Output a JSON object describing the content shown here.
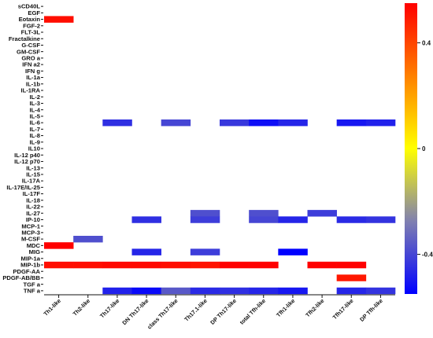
{
  "chart_data": {
    "type": "heatmap",
    "title": "",
    "xlabel": "",
    "ylabel": "",
    "columns": [
      "Th1-like",
      "Th2-like",
      "Th17-like",
      "DN Th17-like",
      "class Th17-like",
      "Th17.1-like",
      "DP Th17-like",
      "total Tfh-like",
      "Tfh1-like",
      "Tfh2-like",
      "Tfh17-like",
      "DP Tfh-like"
    ],
    "rows": [
      "sCD40L",
      "EGF",
      "Eotaxin",
      "FGF-2",
      "FLT-3L",
      "Fractalkine",
      "G-CSF",
      "GM-CSF",
      "GRO a",
      "IFN a2",
      "IFN g",
      "IL-1a",
      "IL-1b",
      "IL-1RA",
      "IL-2",
      "IL-3",
      "IL-4",
      "IL-5",
      "IL-6",
      "IL-7",
      "IL-8",
      "IL-9",
      "IL10",
      "IL-12 p40",
      "IL-12 p70",
      "IL-13",
      "IL-15",
      "IL-17A",
      "IL-17E/IL-25",
      "IL-17F",
      "IL-18",
      "IL-22",
      "IL-27",
      "IP-10",
      "MCP-1",
      "MCP-3",
      "M-CSF",
      "MDC",
      "MIG",
      "MIP-1a",
      "MIP-1b",
      "PDGF-AA",
      "PDGF-AB/BB",
      "TGF a",
      "TNF a"
    ],
    "values": [
      [
        null,
        null,
        null,
        null,
        null,
        null,
        null,
        null,
        null,
        null,
        null,
        null
      ],
      [
        null,
        null,
        null,
        null,
        null,
        null,
        null,
        null,
        null,
        null,
        null,
        null
      ],
      [
        0.52,
        null,
        null,
        null,
        null,
        null,
        null,
        null,
        null,
        null,
        null,
        null
      ],
      [
        null,
        null,
        null,
        null,
        null,
        null,
        null,
        null,
        null,
        null,
        null,
        null
      ],
      [
        null,
        null,
        null,
        null,
        null,
        null,
        null,
        null,
        null,
        null,
        null,
        null
      ],
      [
        null,
        null,
        null,
        null,
        null,
        null,
        null,
        null,
        null,
        null,
        null,
        null
      ],
      [
        null,
        null,
        null,
        null,
        null,
        null,
        null,
        null,
        null,
        null,
        null,
        null
      ],
      [
        null,
        null,
        null,
        null,
        null,
        null,
        null,
        null,
        null,
        null,
        null,
        null
      ],
      [
        null,
        null,
        null,
        null,
        null,
        null,
        null,
        null,
        null,
        null,
        null,
        null
      ],
      [
        null,
        null,
        null,
        null,
        null,
        null,
        null,
        null,
        null,
        null,
        null,
        null
      ],
      [
        null,
        null,
        null,
        null,
        null,
        null,
        null,
        null,
        null,
        null,
        null,
        null
      ],
      [
        null,
        null,
        null,
        null,
        null,
        null,
        null,
        null,
        null,
        null,
        null,
        null
      ],
      [
        null,
        null,
        null,
        null,
        null,
        null,
        null,
        null,
        null,
        null,
        null,
        null
      ],
      [
        null,
        null,
        null,
        null,
        null,
        null,
        null,
        null,
        null,
        null,
        null,
        null
      ],
      [
        null,
        null,
        null,
        null,
        null,
        null,
        null,
        null,
        null,
        null,
        null,
        null
      ],
      [
        null,
        null,
        null,
        null,
        null,
        null,
        null,
        null,
        null,
        null,
        null,
        null
      ],
      [
        null,
        null,
        null,
        null,
        null,
        null,
        null,
        null,
        null,
        null,
        null,
        null
      ],
      [
        null,
        null,
        null,
        null,
        null,
        null,
        null,
        null,
        null,
        null,
        null,
        null
      ],
      [
        null,
        null,
        -0.45,
        null,
        -0.4,
        null,
        -0.43,
        -0.52,
        -0.47,
        null,
        -0.5,
        -0.48
      ],
      [
        null,
        null,
        null,
        null,
        null,
        null,
        null,
        null,
        null,
        null,
        null,
        null
      ],
      [
        null,
        null,
        null,
        null,
        null,
        null,
        null,
        null,
        null,
        null,
        null,
        null
      ],
      [
        null,
        null,
        null,
        null,
        null,
        null,
        null,
        null,
        null,
        null,
        null,
        null
      ],
      [
        null,
        null,
        null,
        null,
        null,
        null,
        null,
        null,
        null,
        null,
        null,
        null
      ],
      [
        null,
        null,
        null,
        null,
        null,
        null,
        null,
        null,
        null,
        null,
        null,
        null
      ],
      [
        null,
        null,
        null,
        null,
        null,
        null,
        null,
        null,
        null,
        null,
        null,
        null
      ],
      [
        null,
        null,
        null,
        null,
        null,
        null,
        null,
        null,
        null,
        null,
        null,
        null
      ],
      [
        null,
        null,
        null,
        null,
        null,
        null,
        null,
        null,
        null,
        null,
        null,
        null
      ],
      [
        null,
        null,
        null,
        null,
        null,
        null,
        null,
        null,
        null,
        null,
        null,
        null
      ],
      [
        null,
        null,
        null,
        null,
        null,
        null,
        null,
        null,
        null,
        null,
        null,
        null
      ],
      [
        null,
        null,
        null,
        null,
        null,
        null,
        null,
        null,
        null,
        null,
        null,
        null
      ],
      [
        null,
        null,
        null,
        null,
        null,
        null,
        null,
        null,
        null,
        null,
        null,
        null
      ],
      [
        null,
        null,
        null,
        null,
        null,
        null,
        null,
        null,
        null,
        null,
        null,
        null
      ],
      [
        null,
        null,
        null,
        null,
        null,
        -0.38,
        null,
        -0.38,
        null,
        -0.42,
        null,
        null
      ],
      [
        null,
        null,
        null,
        -0.45,
        null,
        -0.42,
        null,
        -0.4,
        -0.47,
        null,
        -0.46,
        -0.44
      ],
      [
        null,
        null,
        null,
        null,
        null,
        null,
        null,
        null,
        null,
        null,
        null,
        null
      ],
      [
        null,
        null,
        null,
        null,
        null,
        null,
        null,
        null,
        null,
        null,
        null,
        null
      ],
      [
        null,
        -0.38,
        null,
        null,
        null,
        null,
        null,
        null,
        null,
        null,
        null,
        null
      ],
      [
        0.58,
        null,
        null,
        null,
        null,
        null,
        null,
        null,
        null,
        null,
        null,
        null
      ],
      [
        null,
        null,
        null,
        -0.47,
        null,
        -0.42,
        null,
        null,
        -0.55,
        null,
        null,
        null
      ],
      [
        null,
        null,
        null,
        null,
        null,
        null,
        null,
        null,
        null,
        null,
        null,
        null
      ],
      [
        0.52,
        0.52,
        0.53,
        0.53,
        0.52,
        0.51,
        0.56,
        0.56,
        null,
        0.57,
        0.56,
        null
      ],
      [
        null,
        null,
        null,
        null,
        null,
        null,
        null,
        null,
        null,
        null,
        null,
        null
      ],
      [
        null,
        null,
        null,
        null,
        null,
        null,
        null,
        null,
        null,
        null,
        0.5,
        null
      ],
      [
        null,
        null,
        null,
        null,
        null,
        null,
        null,
        null,
        null,
        null,
        null,
        null
      ],
      [
        null,
        null,
        -0.48,
        -0.53,
        -0.36,
        -0.46,
        -0.45,
        -0.47,
        -0.5,
        null,
        -0.47,
        -0.44
      ]
    ],
    "colorbar": {
      "min": -0.55,
      "max": 0.55,
      "ticks": [
        0.4,
        0,
        -0.4
      ],
      "tick_labels": [
        "0.4",
        "0",
        "-0.4"
      ],
      "colors": {
        "negative": "#0000ff",
        "zero": "#ffff00",
        "positive": "#ff0000"
      }
    },
    "grid": false,
    "legend": "colorbar-right"
  }
}
